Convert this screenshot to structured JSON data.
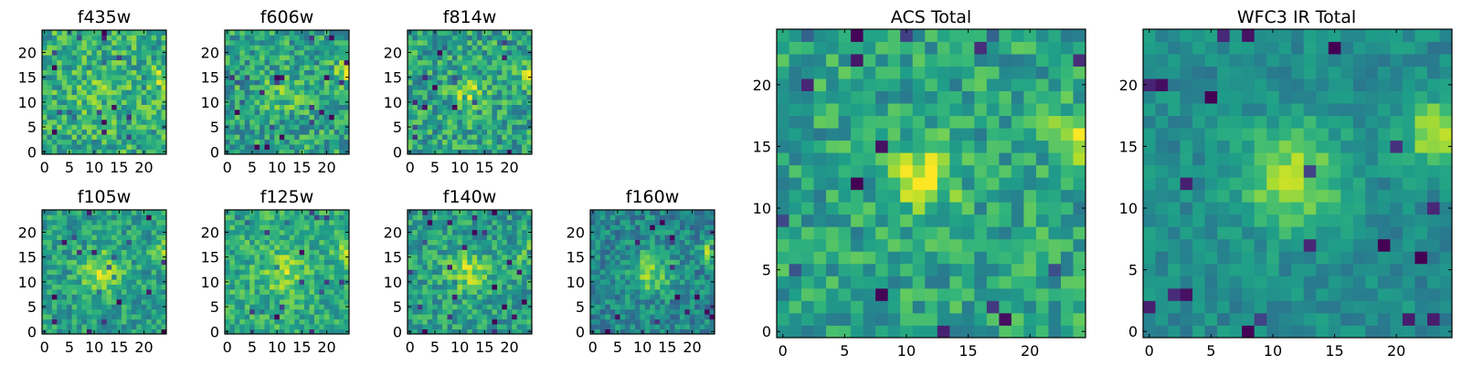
{
  "figure": {
    "type": "image-grid"
  },
  "colormap": {
    "name": "viridis",
    "stops": [
      "#440154",
      "#482878",
      "#3e4989",
      "#31688e",
      "#26828e",
      "#1f9e89",
      "#35b779",
      "#6ece58",
      "#b5de2b",
      "#fde725"
    ]
  },
  "chart_data": [
    {
      "type": "heatmap",
      "title": "f435w",
      "grid_size": 25,
      "show_xticks": true,
      "show_yticks": true,
      "xticks": [
        0,
        5,
        10,
        15,
        20
      ],
      "yticks": [
        0,
        5,
        10,
        15,
        20
      ],
      "xlim": [
        -0.5,
        24.5
      ],
      "ylim": [
        -0.5,
        24.5
      ],
      "base_level": 0.62,
      "noise_level": 0.22,
      "blobs": [
        {
          "x": 11.5,
          "y": 12,
          "sigma": 3,
          "amp": 0.12
        },
        {
          "x": 24,
          "y": 15,
          "sigma": 1.5,
          "amp": 0.3
        }
      ],
      "seed": 11
    },
    {
      "type": "heatmap",
      "title": "f606w",
      "grid_size": 25,
      "show_xticks": true,
      "show_yticks": true,
      "xticks": [
        0,
        5,
        10,
        15,
        20
      ],
      "yticks": [
        0,
        5,
        10,
        15,
        20
      ],
      "xlim": [
        -0.5,
        24.5
      ],
      "ylim": [
        -0.5,
        24.5
      ],
      "base_level": 0.58,
      "noise_level": 0.22,
      "blobs": [
        {
          "x": 11.5,
          "y": 12,
          "sigma": 2.5,
          "amp": 0.18
        },
        {
          "x": 24,
          "y": 16,
          "sigma": 1.5,
          "amp": 0.32
        }
      ],
      "seed": 23
    },
    {
      "type": "heatmap",
      "title": "f814w",
      "grid_size": 25,
      "show_xticks": true,
      "show_yticks": true,
      "xticks": [
        0,
        5,
        10,
        15,
        20
      ],
      "yticks": [
        0,
        5,
        10,
        15,
        20
      ],
      "xlim": [
        -0.5,
        24.5
      ],
      "ylim": [
        -0.5,
        24.5
      ],
      "base_level": 0.58,
      "noise_level": 0.22,
      "blobs": [
        {
          "x": 11.5,
          "y": 12,
          "sigma": 2,
          "amp": 0.3
        },
        {
          "x": 24,
          "y": 15,
          "sigma": 1.5,
          "amp": 0.32
        }
      ],
      "seed": 37
    },
    {
      "type": "heatmap",
      "title": "f105w",
      "grid_size": 25,
      "show_xticks": true,
      "show_yticks": true,
      "xticks": [
        0,
        5,
        10,
        15,
        20
      ],
      "yticks": [
        0,
        5,
        10,
        15,
        20
      ],
      "xlim": [
        -0.5,
        24.5
      ],
      "ylim": [
        -0.5,
        24.5
      ],
      "base_level": 0.56,
      "noise_level": 0.17,
      "blobs": [
        {
          "x": 11.5,
          "y": 12,
          "sigma": 3,
          "amp": 0.3
        },
        {
          "x": 24,
          "y": 16,
          "sigma": 1.5,
          "amp": 0.3
        }
      ],
      "seed": 41
    },
    {
      "type": "heatmap",
      "title": "f125w",
      "grid_size": 25,
      "show_xticks": true,
      "show_yticks": true,
      "xticks": [
        0,
        5,
        10,
        15,
        20
      ],
      "yticks": [
        0,
        5,
        10,
        15,
        20
      ],
      "xlim": [
        -0.5,
        24.5
      ],
      "ylim": [
        -0.5,
        24.5
      ],
      "base_level": 0.62,
      "noise_level": 0.17,
      "blobs": [
        {
          "x": 11.5,
          "y": 12,
          "sigma": 3,
          "amp": 0.22
        },
        {
          "x": 24,
          "y": 16,
          "sigma": 1.5,
          "amp": 0.28
        }
      ],
      "seed": 53
    },
    {
      "type": "heatmap",
      "title": "f140w",
      "grid_size": 25,
      "show_xticks": true,
      "show_yticks": true,
      "xticks": [
        0,
        5,
        10,
        15,
        20
      ],
      "yticks": [
        0,
        5,
        10,
        15,
        20
      ],
      "xlim": [
        -0.5,
        24.5
      ],
      "ylim": [
        -0.5,
        24.5
      ],
      "base_level": 0.56,
      "noise_level": 0.18,
      "blobs": [
        {
          "x": 11.5,
          "y": 12,
          "sigma": 3,
          "amp": 0.28
        },
        {
          "x": 24,
          "y": 16,
          "sigma": 1.5,
          "amp": 0.3
        }
      ],
      "seed": 67
    },
    {
      "type": "heatmap",
      "title": "f160w",
      "grid_size": 25,
      "show_xticks": true,
      "show_yticks": true,
      "xticks": [
        0,
        5,
        10,
        15,
        20
      ],
      "yticks": [
        0,
        5,
        10,
        15,
        20
      ],
      "xlim": [
        -0.5,
        24.5
      ],
      "ylim": [
        -0.5,
        24.5
      ],
      "base_level": 0.46,
      "noise_level": 0.17,
      "blobs": [
        {
          "x": 11.5,
          "y": 12,
          "sigma": 3,
          "amp": 0.35
        },
        {
          "x": 24,
          "y": 16,
          "sigma": 1.5,
          "amp": 0.42
        }
      ],
      "seed": 79
    },
    {
      "type": "heatmap",
      "title": "ACS Total",
      "grid_size": 25,
      "show_xticks": true,
      "show_yticks": true,
      "xticks": [
        0,
        5,
        10,
        15,
        20
      ],
      "yticks": [
        0,
        5,
        10,
        15,
        20
      ],
      "xlim": [
        -0.5,
        24.5
      ],
      "ylim": [
        -0.5,
        24.5
      ],
      "base_level": 0.58,
      "noise_level": 0.18,
      "blobs": [
        {
          "x": 11.5,
          "y": 12.5,
          "sigma": 1.8,
          "amp": 0.38
        },
        {
          "x": 24,
          "y": 15.5,
          "sigma": 1.5,
          "amp": 0.38
        }
      ],
      "seed": 97
    },
    {
      "type": "heatmap",
      "title": "WFC3 IR Total",
      "grid_size": 25,
      "show_xticks": true,
      "show_yticks": true,
      "xticks": [
        0,
        5,
        10,
        15,
        20
      ],
      "yticks": [
        0,
        5,
        10,
        15,
        20
      ],
      "xlim": [
        -0.5,
        24.5
      ],
      "ylim": [
        -0.5,
        24.5
      ],
      "base_level": 0.48,
      "noise_level": 0.1,
      "blobs": [
        {
          "x": 11.5,
          "y": 12.5,
          "sigma": 3,
          "amp": 0.38
        },
        {
          "x": 23.5,
          "y": 16,
          "sigma": 1.8,
          "amp": 0.48
        }
      ],
      "seed": 113
    }
  ]
}
